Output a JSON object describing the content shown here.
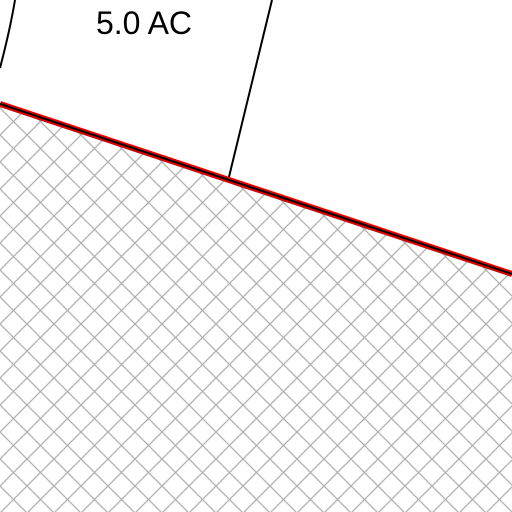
{
  "label": "5.0 AC"
}
